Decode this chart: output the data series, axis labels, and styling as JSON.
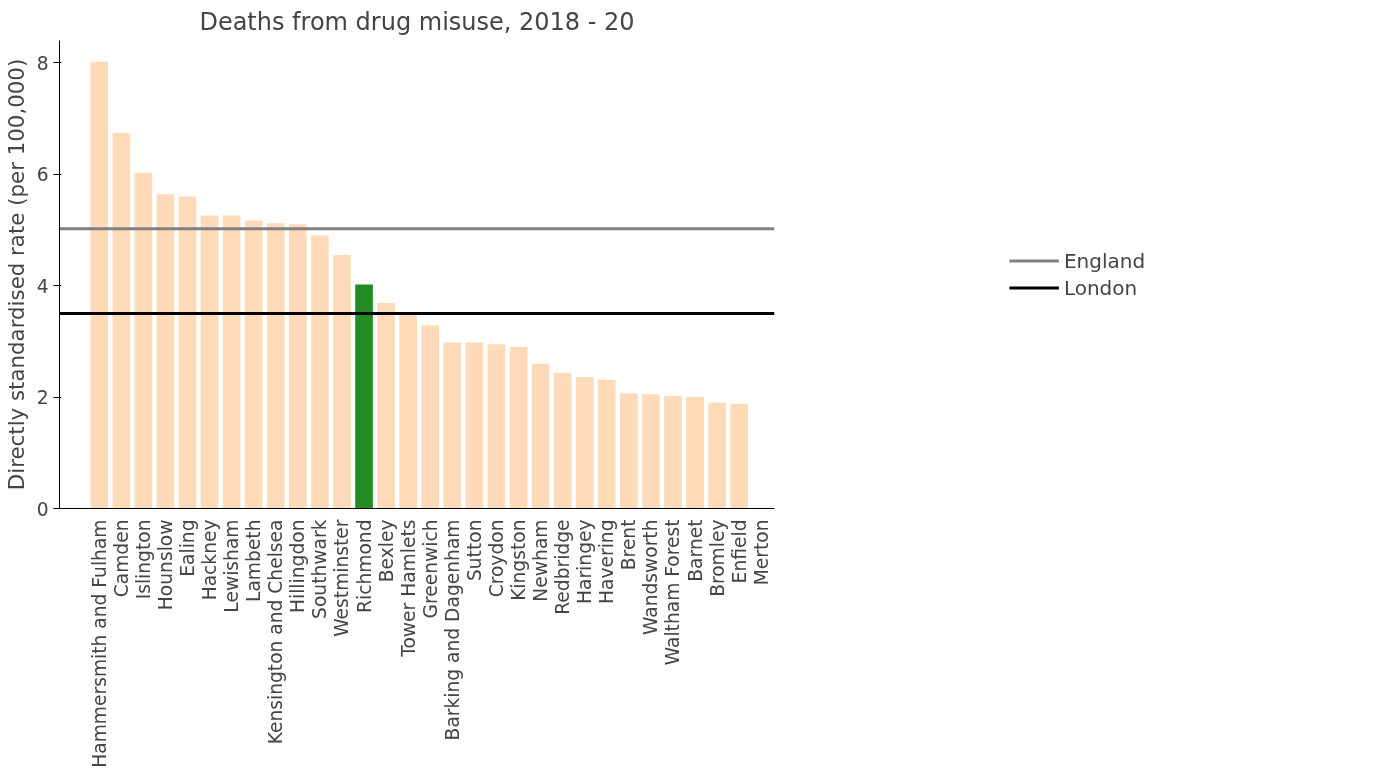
{
  "chart_data": {
    "type": "bar",
    "title": "Deaths from drug misuse, 2018 - 20",
    "ylabel": "Directly standardised rate (per 100,000)",
    "categories": [
      "Hammersmith and Fulham",
      "Camden",
      "Islington",
      "Hounslow",
      "Ealing",
      "Hackney",
      "Lewisham",
      "Lambeth",
      "Kensington and Chelsea",
      "Hillingdon",
      "Southwark",
      "Westminster",
      "Richmond",
      "Bexley",
      "Tower Hamlets",
      "Greenwich",
      "Barking and Dagenham",
      "Sutton",
      "Croydon",
      "Kingston",
      "Newham",
      "Redbridge",
      "Haringey",
      "Havering",
      "Brent",
      "Wandsworth",
      "Waltham Forest",
      "Barnet",
      "Bromley",
      "Enfield",
      "Merton"
    ],
    "values": [
      8.02,
      6.74,
      6.02,
      5.64,
      5.6,
      5.26,
      5.26,
      5.17,
      5.12,
      5.1,
      4.9,
      4.55,
      4.02,
      3.69,
      3.5,
      3.29,
      2.98,
      2.98,
      2.95,
      2.9,
      2.6,
      2.43,
      2.36,
      2.31,
      2.07,
      2.05,
      2.02,
      2.0,
      1.9,
      1.88,
      null
    ],
    "colors": [
      "#ffdab9",
      "#ffdab9",
      "#ffdab9",
      "#ffdab9",
      "#ffdab9",
      "#ffdab9",
      "#ffdab9",
      "#ffdab9",
      "#ffdab9",
      "#ffdab9",
      "#ffdab9",
      "#ffdab9",
      "#228b22",
      "#ffdab9",
      "#ffdab9",
      "#ffdab9",
      "#ffdab9",
      "#ffdab9",
      "#ffdab9",
      "#ffdab9",
      "#ffdab9",
      "#ffdab9",
      "#ffdab9",
      "#ffdab9",
      "#ffdab9",
      "#ffdab9",
      "#ffdab9",
      "#ffdab9",
      "#ffdab9",
      "#ffdab9",
      "#ffdab9"
    ],
    "ylim": [
      0,
      8.4
    ],
    "yticks": [
      0,
      2,
      4,
      6,
      8
    ],
    "ref_lines": [
      {
        "axis": "y",
        "value": 5.02,
        "label": "England",
        "color": "#808080"
      },
      {
        "axis": "y",
        "value": 3.5,
        "label": "London",
        "color": "#000000"
      }
    ],
    "legend": "right",
    "grid": false
  }
}
